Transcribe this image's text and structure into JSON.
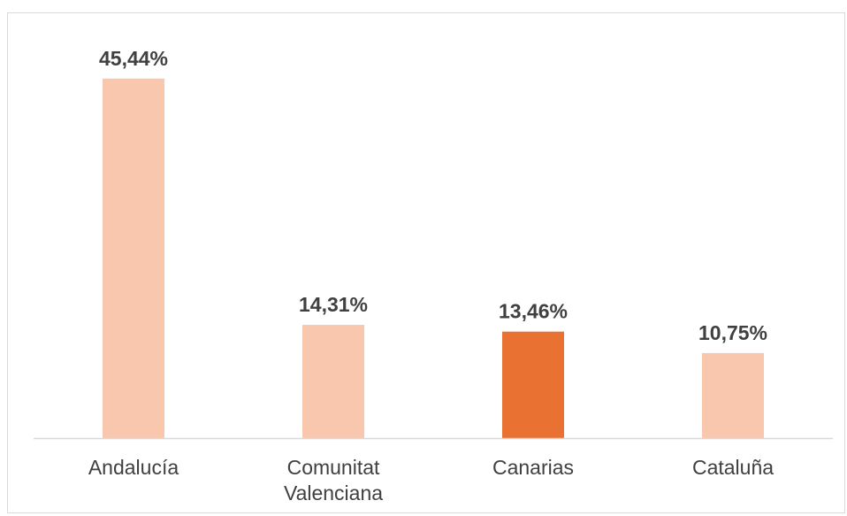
{
  "chart_data": {
    "type": "bar",
    "categories": [
      "Andalucía",
      "Comunitat Valenciana",
      "Canarias",
      "Cataluña"
    ],
    "category_lines": [
      [
        "Andalucía"
      ],
      [
        "Comunitat",
        "Valenciana"
      ],
      [
        "Canarias"
      ],
      [
        "Cataluña"
      ]
    ],
    "values": [
      45.44,
      14.31,
      13.46,
      10.75
    ],
    "data_labels": [
      "45,44%",
      "14,31%",
      "13,46%",
      "10,75%"
    ],
    "ylim": [
      0,
      50
    ],
    "grid": false,
    "legend": "none",
    "colors": {
      "default_bar": "#f8c7ae",
      "highlight_bar": "#e97132",
      "axis": "#d9d9d9",
      "text": "#404040"
    },
    "highlight_index": 2
  }
}
